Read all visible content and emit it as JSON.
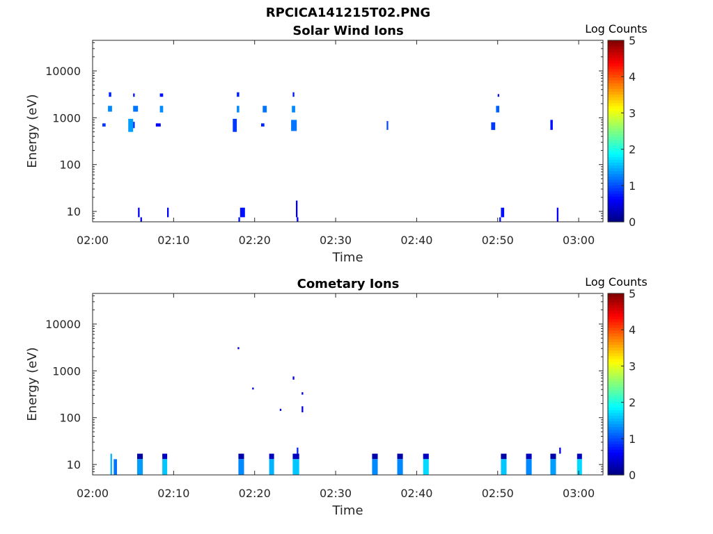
{
  "figure_title": "RPCICA141215T02.PNG",
  "chart_data": [
    {
      "type": "heatmap",
      "title": "Solar Wind Ions",
      "xlabel": "Time",
      "ylabel": "Energy (eV)",
      "y_scale": "log",
      "ylim": [
        6,
        45000
      ],
      "xlim": [
        "02:00",
        "03:03"
      ],
      "x_ticks": [
        "02:00",
        "02:10",
        "02:20",
        "02:30",
        "02:40",
        "02:50",
        "03:00"
      ],
      "y_ticks": [
        "10",
        "100",
        "1000",
        "10000"
      ],
      "colorbar": {
        "label": "Log Counts",
        "range": [
          0,
          5
        ],
        "ticks": [
          "0",
          "1",
          "2",
          "3",
          "4",
          "5"
        ],
        "colormap": "jet"
      },
      "cells": [
        {
          "t0": 1.2,
          "t1": 1.6,
          "e0": 650,
          "e1": 760,
          "v": 0.9
        },
        {
          "t0": 1.9,
          "t1": 2.4,
          "e0": 1350,
          "e1": 1800,
          "v": 1.3
        },
        {
          "t0": 2.0,
          "t1": 2.3,
          "e0": 2800,
          "e1": 3500,
          "v": 0.8
        },
        {
          "t0": 4.4,
          "t1": 5.0,
          "e0": 500,
          "e1": 950,
          "v": 1.4
        },
        {
          "t0": 5.0,
          "t1": 5.6,
          "e0": 1350,
          "e1": 1800,
          "v": 1.2
        },
        {
          "t0": 5.0,
          "t1": 5.2,
          "e0": 2800,
          "e1": 3300,
          "v": 0.7
        },
        {
          "t0": 5.0,
          "t1": 5.2,
          "e0": 600,
          "e1": 820,
          "v": 0.8
        },
        {
          "t0": 7.8,
          "t1": 8.4,
          "e0": 650,
          "e1": 760,
          "v": 0.6
        },
        {
          "t0": 8.3,
          "t1": 8.7,
          "e0": 1300,
          "e1": 1800,
          "v": 1.3
        },
        {
          "t0": 8.3,
          "t1": 8.7,
          "e0": 2800,
          "e1": 3300,
          "v": 0.7
        },
        {
          "t0": 17.3,
          "t1": 17.8,
          "e0": 500,
          "e1": 950,
          "v": 0.9
        },
        {
          "t0": 17.8,
          "t1": 18.1,
          "e0": 1300,
          "e1": 1800,
          "v": 1.3
        },
        {
          "t0": 17.8,
          "t1": 18.1,
          "e0": 2800,
          "e1": 3500,
          "v": 0.8
        },
        {
          "t0": 20.8,
          "t1": 21.2,
          "e0": 650,
          "e1": 760,
          "v": 0.8
        },
        {
          "t0": 21.0,
          "t1": 21.5,
          "e0": 1300,
          "e1": 1800,
          "v": 1.2
        },
        {
          "t0": 24.5,
          "t1": 25.2,
          "e0": 520,
          "e1": 900,
          "v": 1.2
        },
        {
          "t0": 24.6,
          "t1": 25.0,
          "e0": 1300,
          "e1": 1800,
          "v": 1.3
        },
        {
          "t0": 24.7,
          "t1": 24.9,
          "e0": 2800,
          "e1": 3500,
          "v": 0.7
        },
        {
          "t0": 36.3,
          "t1": 36.5,
          "e0": 550,
          "e1": 850,
          "v": 1.0
        },
        {
          "t0": 49.2,
          "t1": 49.7,
          "e0": 550,
          "e1": 800,
          "v": 0.9
        },
        {
          "t0": 49.8,
          "t1": 50.2,
          "e0": 1300,
          "e1": 1800,
          "v": 1.1
        },
        {
          "t0": 50.0,
          "t1": 50.2,
          "e0": 2800,
          "e1": 3200,
          "v": 0.7
        },
        {
          "t0": 56.5,
          "t1": 56.8,
          "e0": 550,
          "e1": 900,
          "v": 0.7
        },
        {
          "t0": 5.6,
          "t1": 5.8,
          "e0": 7.5,
          "e1": 12,
          "v": 0.6
        },
        {
          "t0": 5.9,
          "t1": 6.1,
          "e0": 6,
          "e1": 7.5,
          "v": 0.6
        },
        {
          "t0": 9.2,
          "t1": 9.4,
          "e0": 7.5,
          "e1": 12,
          "v": 0.6
        },
        {
          "t0": 18.2,
          "t1": 18.8,
          "e0": 7.5,
          "e1": 12,
          "v": 0.7
        },
        {
          "t0": 18.0,
          "t1": 18.2,
          "e0": 6,
          "e1": 7.5,
          "v": 0.7
        },
        {
          "t0": 25.1,
          "t1": 25.3,
          "e0": 7.5,
          "e1": 17,
          "v": 0.6
        },
        {
          "t0": 25.2,
          "t1": 25.4,
          "e0": 6,
          "e1": 7.5,
          "v": 0.6
        },
        {
          "t0": 50.4,
          "t1": 50.8,
          "e0": 7.5,
          "e1": 12,
          "v": 0.7
        },
        {
          "t0": 50.2,
          "t1": 50.4,
          "e0": 6,
          "e1": 7.5,
          "v": 0.7
        },
        {
          "t0": 57.3,
          "t1": 57.5,
          "e0": 6,
          "e1": 12,
          "v": 0.6
        }
      ]
    },
    {
      "type": "heatmap",
      "title": "Cometary Ions",
      "xlabel": "Time",
      "ylabel": "Energy (eV)",
      "y_scale": "log",
      "ylim": [
        6,
        45000
      ],
      "xlim": [
        "02:00",
        "03:03"
      ],
      "x_ticks": [
        "02:00",
        "02:10",
        "02:20",
        "02:30",
        "02:40",
        "02:50",
        "03:00"
      ],
      "y_ticks": [
        "10",
        "100",
        "1000",
        "10000"
      ],
      "colorbar": {
        "label": "Log Counts",
        "range": [
          0,
          5
        ],
        "ticks": [
          "0",
          "1",
          "2",
          "3",
          "4",
          "5"
        ],
        "colormap": "jet"
      },
      "cells": [
        {
          "t0": 2.2,
          "t1": 2.4,
          "e0": 6,
          "e1": 17,
          "v": 1.5
        },
        {
          "t0": 2.6,
          "t1": 3.0,
          "e0": 6,
          "e1": 13,
          "v": 1.2
        },
        {
          "t0": 5.5,
          "t1": 6.2,
          "e0": 13,
          "e1": 17,
          "v": 0.2
        },
        {
          "t0": 5.5,
          "t1": 6.2,
          "e0": 6,
          "e1": 13,
          "v": 1.4
        },
        {
          "t0": 8.6,
          "t1": 9.2,
          "e0": 13,
          "e1": 17,
          "v": 0.3
        },
        {
          "t0": 8.6,
          "t1": 9.2,
          "e0": 6,
          "e1": 13,
          "v": 1.6
        },
        {
          "t0": 18.0,
          "t1": 18.7,
          "e0": 13,
          "e1": 17,
          "v": 0.2
        },
        {
          "t0": 18.0,
          "t1": 18.7,
          "e0": 6,
          "e1": 13,
          "v": 1.3
        },
        {
          "t0": 21.8,
          "t1": 22.4,
          "e0": 13,
          "e1": 17,
          "v": 0.3
        },
        {
          "t0": 21.8,
          "t1": 22.4,
          "e0": 6,
          "e1": 13,
          "v": 1.5
        },
        {
          "t0": 24.7,
          "t1": 25.5,
          "e0": 13,
          "e1": 17,
          "v": 0.3
        },
        {
          "t0": 24.7,
          "t1": 25.5,
          "e0": 6,
          "e1": 13,
          "v": 1.6
        },
        {
          "t0": 25.2,
          "t1": 25.4,
          "e0": 17,
          "e1": 23,
          "v": 0.8
        },
        {
          "t0": 34.5,
          "t1": 35.2,
          "e0": 13,
          "e1": 17,
          "v": 0.2
        },
        {
          "t0": 34.5,
          "t1": 35.2,
          "e0": 6,
          "e1": 13,
          "v": 1.3
        },
        {
          "t0": 37.6,
          "t1": 38.3,
          "e0": 13,
          "e1": 17,
          "v": 0.2
        },
        {
          "t0": 37.6,
          "t1": 38.3,
          "e0": 6,
          "e1": 13,
          "v": 1.3
        },
        {
          "t0": 40.8,
          "t1": 41.5,
          "e0": 13,
          "e1": 17,
          "v": 0.3
        },
        {
          "t0": 40.8,
          "t1": 41.5,
          "e0": 6,
          "e1": 13,
          "v": 1.7
        },
        {
          "t0": 50.4,
          "t1": 51.1,
          "e0": 13,
          "e1": 17,
          "v": 0.2
        },
        {
          "t0": 50.4,
          "t1": 51.1,
          "e0": 6,
          "e1": 13,
          "v": 1.6
        },
        {
          "t0": 53.5,
          "t1": 54.2,
          "e0": 13,
          "e1": 17,
          "v": 0.3
        },
        {
          "t0": 53.5,
          "t1": 54.2,
          "e0": 6,
          "e1": 13,
          "v": 1.3
        },
        {
          "t0": 56.5,
          "t1": 57.2,
          "e0": 13,
          "e1": 17,
          "v": 0.2
        },
        {
          "t0": 56.5,
          "t1": 57.2,
          "e0": 6,
          "e1": 13,
          "v": 1.4
        },
        {
          "t0": 57.6,
          "t1": 57.8,
          "e0": 17,
          "e1": 23,
          "v": 0.6
        },
        {
          "t0": 59.8,
          "t1": 60.4,
          "e0": 13,
          "e1": 17,
          "v": 0.3
        },
        {
          "t0": 59.8,
          "t1": 60.4,
          "e0": 6,
          "e1": 13,
          "v": 1.7
        },
        {
          "t0": 17.9,
          "t1": 18.1,
          "e0": 2900,
          "e1": 3200,
          "v": 0.4
        },
        {
          "t0": 19.7,
          "t1": 19.9,
          "e0": 400,
          "e1": 440,
          "v": 0.5
        },
        {
          "t0": 23.1,
          "t1": 23.3,
          "e0": 140,
          "e1": 155,
          "v": 0.4
        },
        {
          "t0": 24.7,
          "t1": 24.9,
          "e0": 650,
          "e1": 760,
          "v": 0.5
        },
        {
          "t0": 25.8,
          "t1": 26.0,
          "e0": 310,
          "e1": 350,
          "v": 0.5
        },
        {
          "t0": 25.8,
          "t1": 26.0,
          "e0": 130,
          "e1": 175,
          "v": 0.6
        }
      ]
    }
  ]
}
